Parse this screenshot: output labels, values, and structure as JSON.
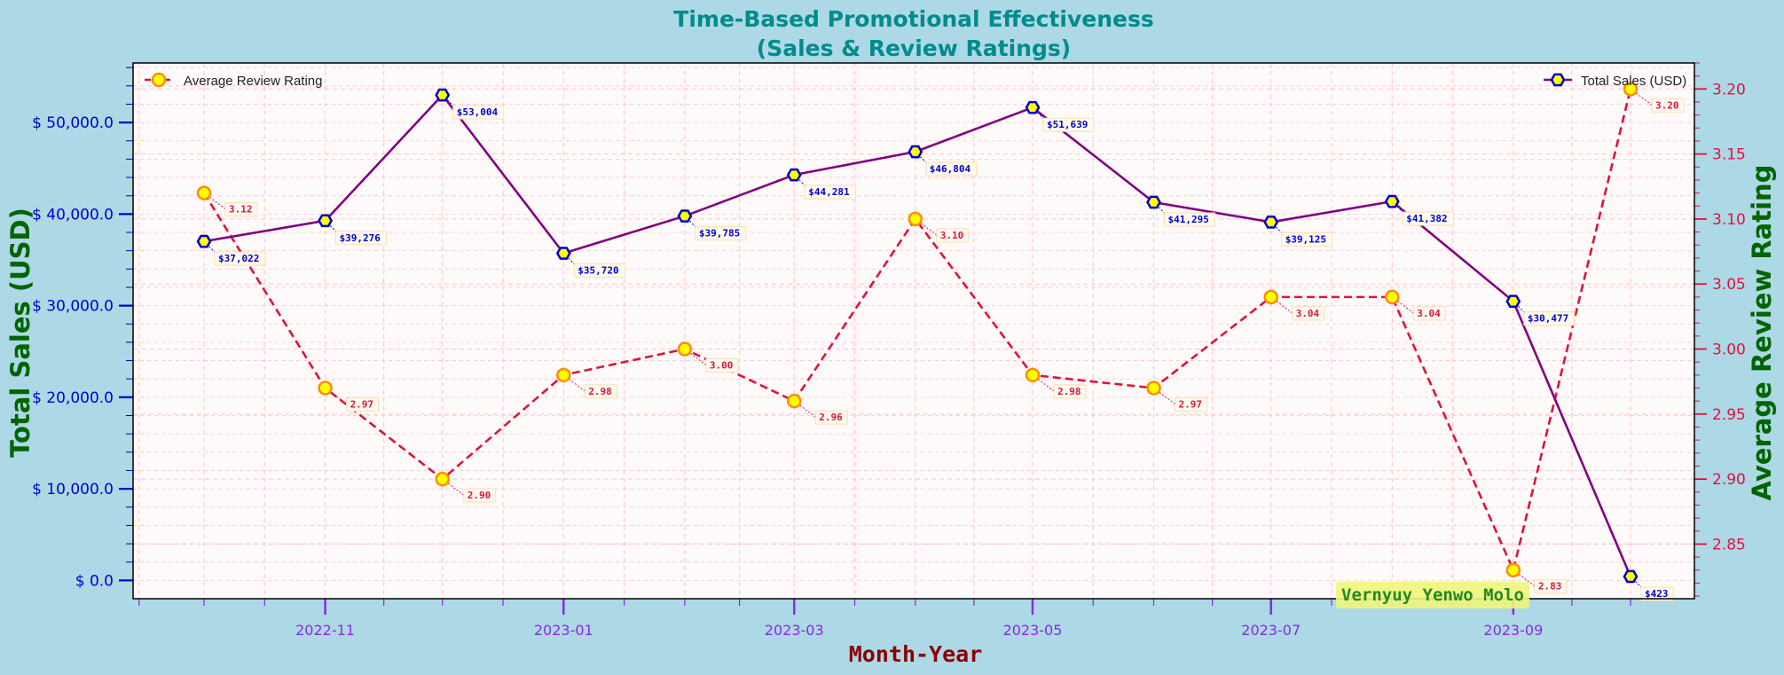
{
  "chart_data": {
    "type": "line",
    "title_line1": "Time-Based Promotional Effectiveness",
    "title_line2": "(Sales & Review Ratings)",
    "xlabel": "Month-Year",
    "ylabel_left": "Total Sales (USD)",
    "ylabel_right": "Average Review Rating",
    "x": [
      "2022-10",
      "2022-11",
      "2022-12",
      "2023-01",
      "2023-02",
      "2023-03",
      "2023-04",
      "2023-05",
      "2023-06",
      "2023-07",
      "2023-08",
      "2023-09",
      "2023-10"
    ],
    "x_tick_labels": [
      "2022-11",
      "2023-01",
      "2023-03",
      "2023-05",
      "2023-07",
      "2023-09"
    ],
    "ylim_left": [
      -2000,
      56500
    ],
    "ylim_right": [
      2.808,
      3.22
    ],
    "y_left_ticks": [
      0,
      10000,
      20000,
      30000,
      40000,
      50000
    ],
    "y_left_tick_labels": [
      "$ 0.0",
      "$ 10,000.0",
      "$ 20,000.0",
      "$ 30,000.0",
      "$ 40,000.0",
      "$ 50,000.0"
    ],
    "y_right_ticks": [
      2.85,
      2.9,
      2.95,
      3.0,
      3.05,
      3.1,
      3.15,
      3.2
    ],
    "y_right_tick_labels": [
      "2.85",
      "2.90",
      "2.95",
      "3.00",
      "3.05",
      "3.10",
      "3.15",
      "3.20"
    ],
    "grid": true,
    "series": [
      {
        "name": "Total Sales (USD)",
        "axis": "left",
        "color": "#800080",
        "marker_face": "#ffff00",
        "marker_edge": "#0000cd",
        "label_color": "#0000cd",
        "values": [
          37022,
          39276,
          53004,
          35720,
          39785,
          44281,
          46804,
          51639,
          41295,
          39125,
          41382,
          30477,
          423
        ],
        "data_labels": [
          "$37,022",
          "$39,276",
          "$53,004",
          "$35,720",
          "$39,785",
          "$44,281",
          "$46,804",
          "$51,639",
          "$41,295",
          "$39,125",
          "$41,382",
          "$30,477",
          "$423"
        ],
        "legend_position": "top-right"
      },
      {
        "name": "Average Review Rating",
        "axis": "right",
        "color": "#dc143c",
        "marker_face": "#ffff00",
        "marker_edge": "#ff8c00",
        "label_color": "#dc143c",
        "values": [
          3.12,
          2.97,
          2.9,
          2.98,
          3.0,
          2.96,
          3.1,
          2.98,
          2.97,
          3.04,
          3.04,
          2.83,
          3.2
        ],
        "data_labels": [
          "3.12",
          "2.97",
          "2.90",
          "2.98",
          "3.00",
          "2.96",
          "3.10",
          "2.98",
          "2.97",
          "3.04",
          "3.04",
          "2.83",
          "3.20"
        ],
        "legend_position": "top-left"
      }
    ],
    "annotation": "Vernyuy Yenwo Molo"
  },
  "colors": {
    "background": "#add8e6",
    "plot_bg": "#fffafa",
    "title": "#008b8b",
    "axis_label": "#006400",
    "xlabel": "#8b0000",
    "left_ticks": "#0000cd",
    "right_ticks": "#dc143c",
    "x_ticks": "#8a2be2",
    "grid": "#ffc0cb",
    "annotation_bg": "#f0f57a",
    "annotation_text": "#228b22"
  }
}
